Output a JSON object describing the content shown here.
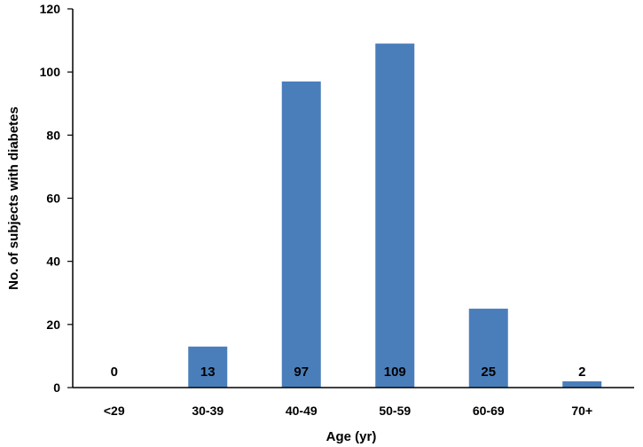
{
  "chart_data": {
    "type": "bar",
    "categories": [
      "<29",
      "30-39",
      "40-49",
      "50-59",
      "60-69",
      "70+"
    ],
    "values": [
      0,
      13,
      97,
      109,
      25,
      2
    ],
    "data_labels": [
      "0",
      "13",
      "97",
      "109",
      "25",
      "2"
    ],
    "title": "",
    "xlabel": "Age (yr)",
    "ylabel": "No. of subjects with diabetes",
    "ylim": [
      0,
      120
    ],
    "yticks": [
      0,
      20,
      40,
      60,
      80,
      100,
      120
    ],
    "grid": false,
    "legend": "none",
    "bar_color": "#4a7ebb",
    "data_label_position": "inside-bottom"
  }
}
